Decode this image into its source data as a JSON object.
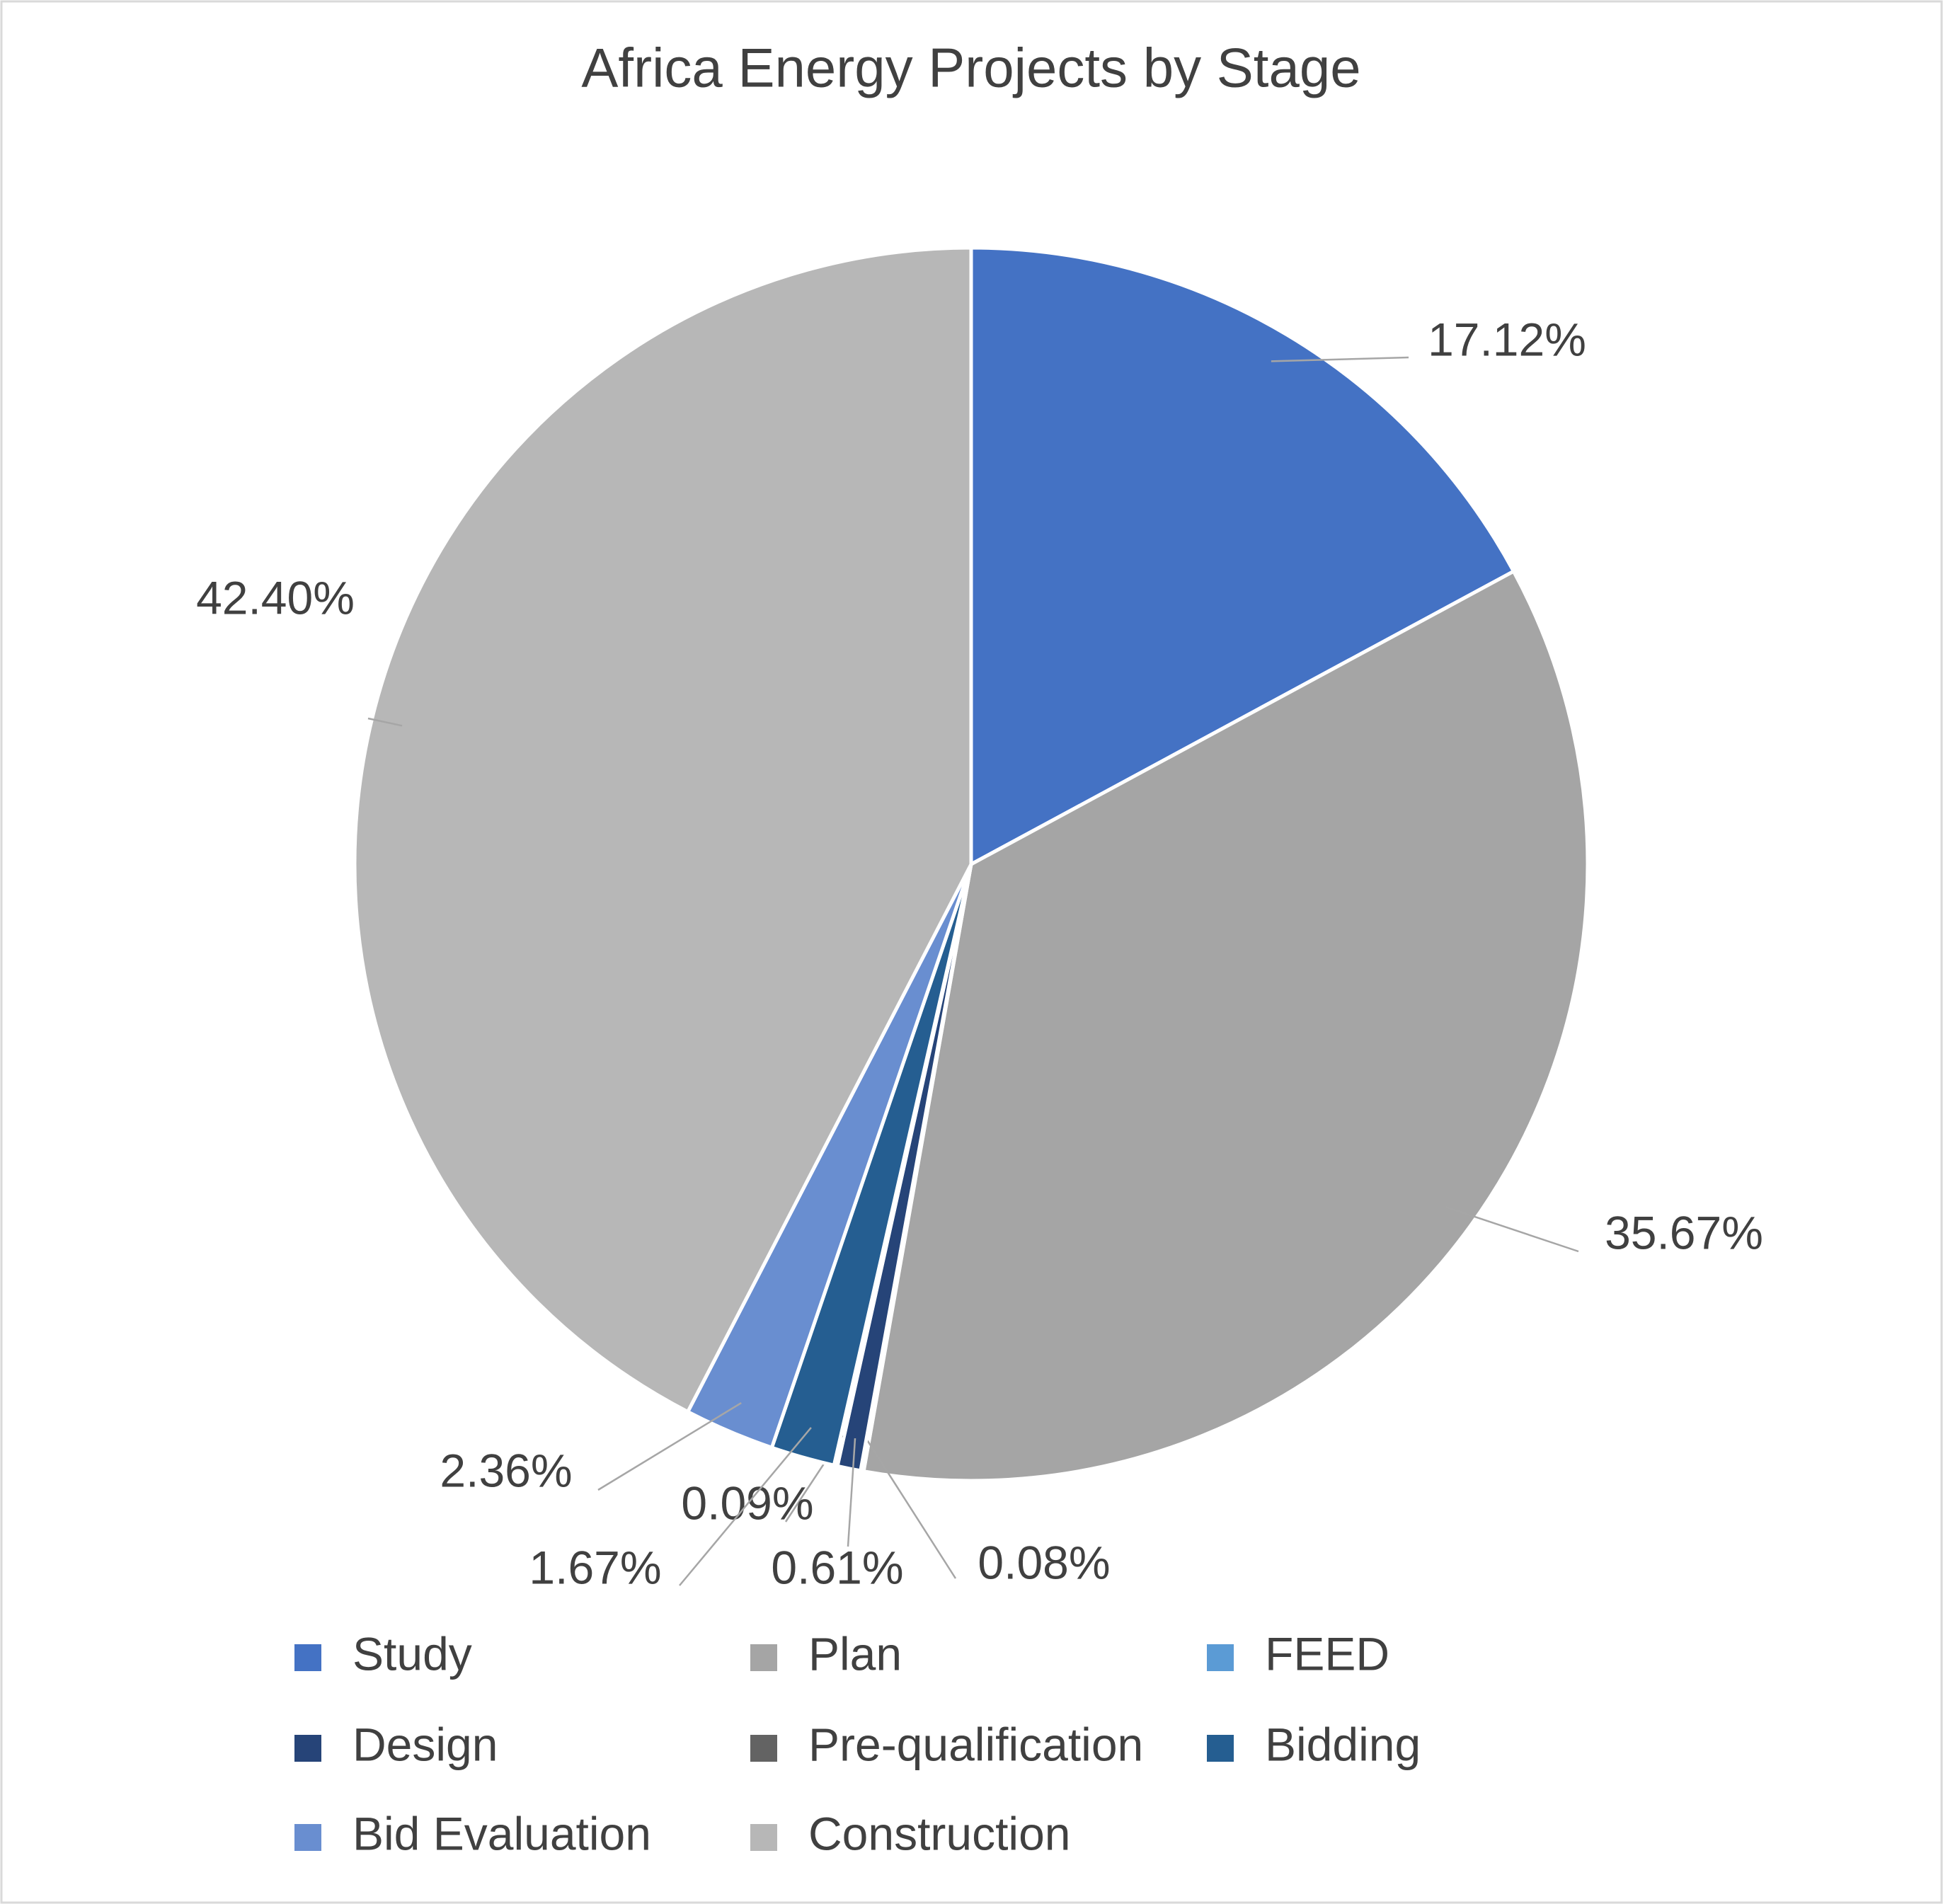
{
  "chart_data": {
    "type": "pie",
    "title": "Africa Energy Projects by Stage",
    "categories": [
      "Study",
      "Plan",
      "FEED",
      "Design",
      "Pre-qualification",
      "Bidding",
      "Bid Evaluation",
      "Construction"
    ],
    "values": [
      17.12,
      35.67,
      0.08,
      0.61,
      0.09,
      1.67,
      2.36,
      42.4
    ],
    "value_labels": [
      "17.12%",
      "35.67%",
      "0.08%",
      "0.61%",
      "0.09%",
      "1.67%",
      "2.36%",
      "42.40%"
    ],
    "colors": [
      "#4472c4",
      "#a5a5a5",
      "#5b9bd5",
      "#264478",
      "#636363",
      "#255e91",
      "#698ed0",
      "#b7b7b7"
    ],
    "legend": "bottom"
  }
}
